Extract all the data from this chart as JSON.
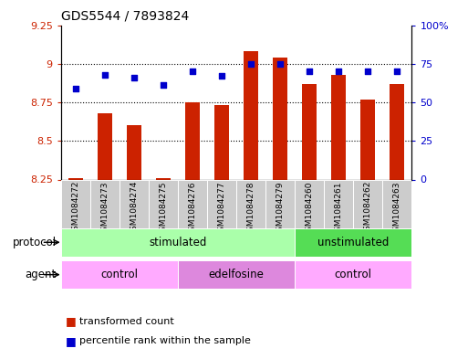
{
  "title": "GDS5544 / 7893824",
  "samples": [
    "GSM1084272",
    "GSM1084273",
    "GSM1084274",
    "GSM1084275",
    "GSM1084276",
    "GSM1084277",
    "GSM1084278",
    "GSM1084279",
    "GSM1084260",
    "GSM1084261",
    "GSM1084262",
    "GSM1084263"
  ],
  "bar_values": [
    8.26,
    8.68,
    8.6,
    8.26,
    8.75,
    8.73,
    9.08,
    9.04,
    8.87,
    8.93,
    8.77,
    8.87
  ],
  "scatter_values": [
    8.84,
    8.93,
    8.91,
    8.86,
    8.95,
    8.92,
    9.0,
    9.0,
    8.95,
    8.95,
    8.95,
    8.95
  ],
  "bar_bottom": 8.25,
  "ylim_left": [
    8.25,
    9.25
  ],
  "ylim_right": [
    0,
    100
  ],
  "yticks_left": [
    8.25,
    8.5,
    8.75,
    9.0,
    9.25
  ],
  "yticks_right": [
    0,
    25,
    50,
    75,
    100
  ],
  "ytick_labels_left": [
    "8.25",
    "8.5",
    "8.75",
    "9",
    "9.25"
  ],
  "ytick_labels_right": [
    "0",
    "25",
    "50",
    "75",
    "100%"
  ],
  "bar_color": "#cc2200",
  "scatter_color": "#0000cc",
  "plot_bg": "#ffffff",
  "protocol_labels": [
    {
      "text": "stimulated",
      "start": 0,
      "end": 7,
      "color": "#aaffaa"
    },
    {
      "text": "unstimulated",
      "start": 8,
      "end": 11,
      "color": "#55dd55"
    }
  ],
  "agent_labels": [
    {
      "text": "control",
      "start": 0,
      "end": 3,
      "color": "#ffaaff"
    },
    {
      "text": "edelfosine",
      "start": 4,
      "end": 7,
      "color": "#dd88dd"
    },
    {
      "text": "control",
      "start": 8,
      "end": 11,
      "color": "#ffaaff"
    }
  ],
  "protocol_row_label": "protocol",
  "agent_row_label": "agent",
  "legend_bar_label": "transformed count",
  "legend_scatter_label": "percentile rank within the sample",
  "title_fontsize": 10,
  "tick_fontsize": 8,
  "label_fontsize": 8.5,
  "sample_fontsize": 6.5
}
